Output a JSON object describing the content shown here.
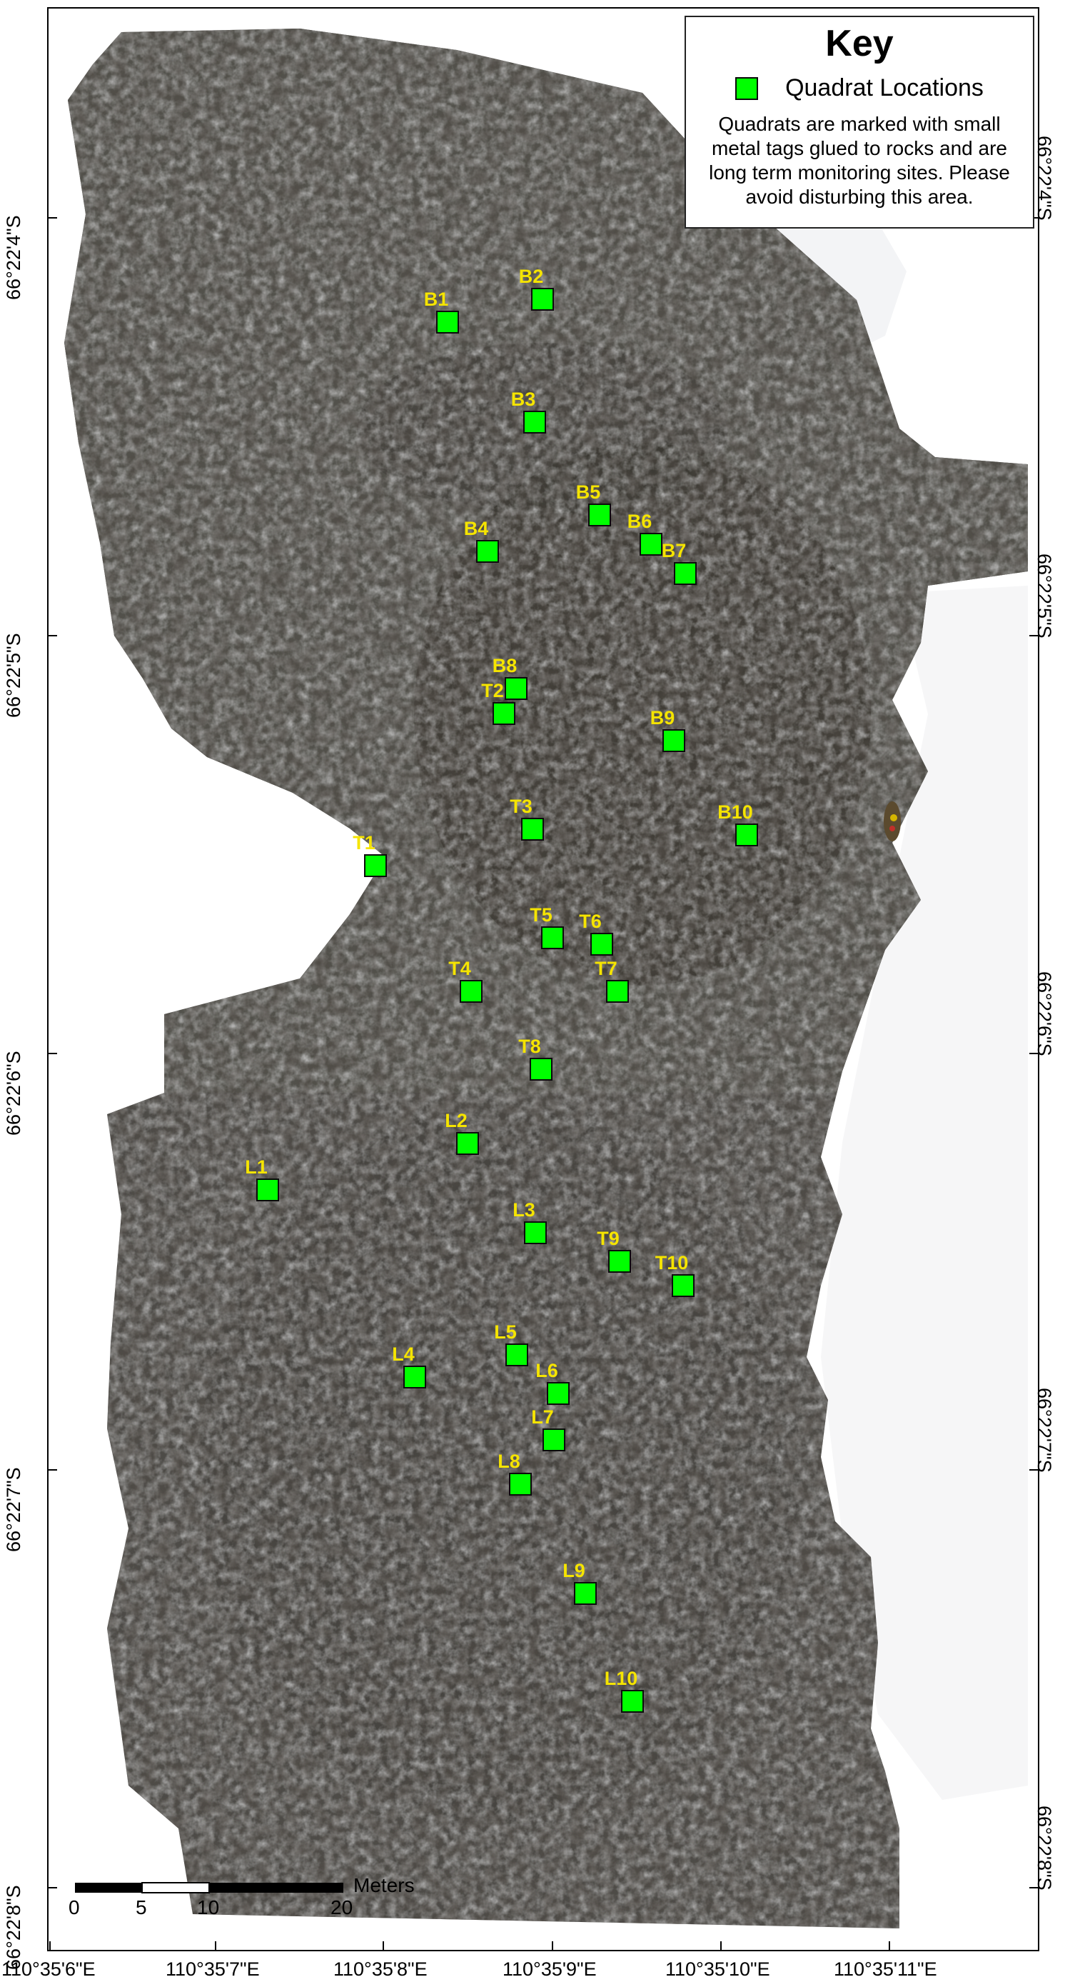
{
  "key": {
    "title": "Key",
    "legend_label": "Quadrat Locations",
    "legend_color": "#00ff00",
    "note": "Quadrats are marked with small metal tags glued to rocks and are long term monitoring sites. Please avoid disturbing this area."
  },
  "latitude_labels": [
    "66°22'4\"S",
    "66°22'5\"S",
    "66°22'6\"S",
    "66°22'7\"S",
    "66°22'8\"S"
  ],
  "longitude_labels": [
    "110°35'6\"E",
    "110°35'7\"E",
    "110°35'8\"E",
    "110°35'9\"E",
    "110°35'10\"E",
    "110°35'11\"E"
  ],
  "scale_bar": {
    "unit": "Meters",
    "ticks": [
      "0",
      "5",
      "10",
      "20"
    ]
  },
  "quadrats": [
    {
      "id": "B1"
    },
    {
      "id": "B2"
    },
    {
      "id": "B3"
    },
    {
      "id": "B4"
    },
    {
      "id": "B5"
    },
    {
      "id": "B6"
    },
    {
      "id": "B7"
    },
    {
      "id": "B8"
    },
    {
      "id": "B9"
    },
    {
      "id": "B10"
    },
    {
      "id": "T1"
    },
    {
      "id": "T2"
    },
    {
      "id": "T3"
    },
    {
      "id": "T4"
    },
    {
      "id": "T5"
    },
    {
      "id": "T6"
    },
    {
      "id": "T7"
    },
    {
      "id": "T8"
    },
    {
      "id": "T9"
    },
    {
      "id": "T10"
    },
    {
      "id": "L1"
    },
    {
      "id": "L2"
    },
    {
      "id": "L3"
    },
    {
      "id": "L4"
    },
    {
      "id": "L5"
    },
    {
      "id": "L6"
    },
    {
      "id": "L7"
    },
    {
      "id": "L8"
    },
    {
      "id": "L9"
    },
    {
      "id": "L10"
    }
  ]
}
